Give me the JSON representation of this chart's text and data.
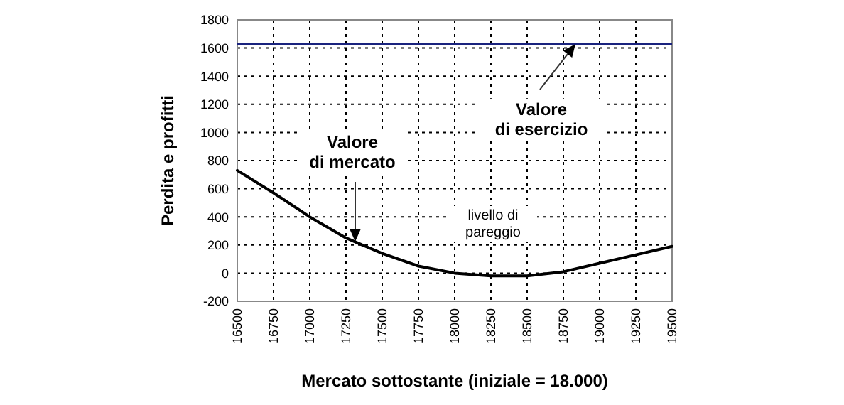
{
  "chart_data": {
    "type": "line",
    "xlabel": "Mercato sottostante (iniziale = 18.000)",
    "ylabel": "Perdita e profitti",
    "x": [
      16500,
      16750,
      17000,
      17250,
      17500,
      17750,
      18000,
      18250,
      18500,
      18750,
      19000,
      19250,
      19500
    ],
    "series": [
      {
        "color": "#000000",
        "values": [
          730,
          570,
          400,
          250,
          140,
          50,
          0,
          -20,
          -20,
          10,
          70,
          130,
          190
        ]
      }
    ],
    "xlim": [
      16500,
      19500
    ],
    "xticks": [
      16500,
      16750,
      17000,
      17250,
      17500,
      17750,
      18000,
      18250,
      18500,
      18750,
      19000,
      19250,
      19500
    ],
    "ylim": [
      -200,
      1800
    ],
    "yticks": [
      -200,
      0,
      200,
      400,
      600,
      800,
      1000,
      1200,
      1400,
      1600,
      1800
    ],
    "ref_lines": [
      {
        "axis": "y",
        "value": 1630,
        "color": "#1a237e"
      }
    ],
    "grid": true,
    "line_style": "solid",
    "annotations": [
      "Valore di esercizio",
      "Valore di mercato",
      "livello di pareggio"
    ]
  }
}
